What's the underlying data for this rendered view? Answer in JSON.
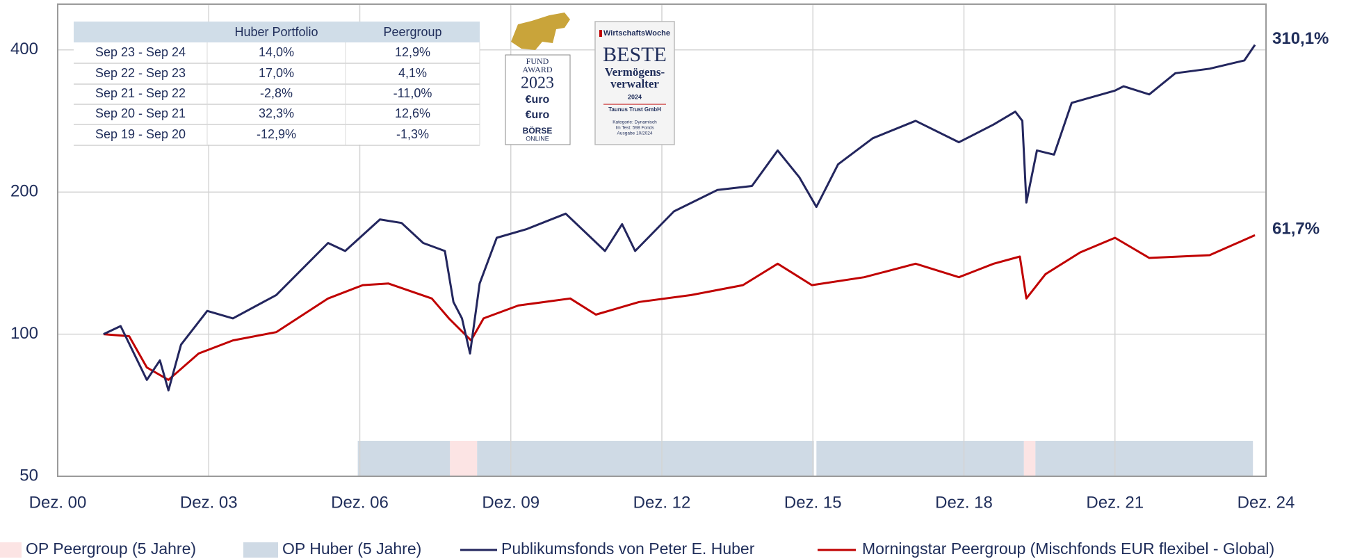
{
  "chart_data": {
    "type": "line",
    "log_scale": true,
    "grid": true,
    "xlim": [
      2000.92,
      2024.92
    ],
    "xticks": [
      {
        "value": 2000.92,
        "label": "Dez. 00"
      },
      {
        "value": 2003.92,
        "label": "Dez. 03"
      },
      {
        "value": 2006.92,
        "label": "Dez. 06"
      },
      {
        "value": 2009.92,
        "label": "Dez. 09"
      },
      {
        "value": 2012.92,
        "label": "Dez. 12"
      },
      {
        "value": 2015.92,
        "label": "Dez. 15"
      },
      {
        "value": 2018.92,
        "label": "Dez. 18"
      },
      {
        "value": 2021.92,
        "label": "Dez. 21"
      },
      {
        "value": 2024.92,
        "label": "Dez. 24"
      }
    ],
    "ylim": [
      50,
      500
    ],
    "yticks": [
      50,
      100,
      200,
      400
    ],
    "bands": [
      {
        "name": "OP Peergroup (5 Jahre)",
        "color": "#fce4e4",
        "periods": [
          [
            2008.71,
            2009.25
          ],
          [
            2020.11,
            2020.34
          ]
        ]
      },
      {
        "name": "OP Huber (5 Jahre)",
        "color": "#cfdae5",
        "periods": [
          [
            2006.88,
            2008.71
          ],
          [
            2009.25,
            2015.94
          ],
          [
            2015.99,
            2020.11
          ],
          [
            2020.34,
            2024.66
          ]
        ]
      }
    ],
    "series": [
      {
        "name": "Publikumsfonds von Peter E. Huber",
        "color": "#23265e",
        "end_label": "310,1%",
        "x": [
          2001.83,
          2002.17,
          2002.69,
          2002.95,
          2003.12,
          2003.37,
          2003.89,
          2004.4,
          2005.26,
          2006.29,
          2006.63,
          2007.32,
          2007.75,
          2008.18,
          2008.61,
          2008.78,
          2008.95,
          2009.11,
          2009.3,
          2009.64,
          2010.24,
          2011.01,
          2011.79,
          2012.13,
          2012.39,
          2013.16,
          2014.02,
          2014.71,
          2015.22,
          2015.65,
          2015.99,
          2016.42,
          2017.11,
          2017.96,
          2018.82,
          2019.51,
          2019.94,
          2020.08,
          2020.16,
          2020.37,
          2020.71,
          2021.06,
          2021.92,
          2022.09,
          2022.6,
          2023.12,
          2023.8,
          2024.49,
          2024.7
        ],
        "values": [
          100,
          104,
          80,
          88,
          76,
          95,
          112,
          108,
          121,
          156,
          150,
          175,
          172,
          156,
          150,
          117,
          108,
          91,
          128,
          160,
          167,
          180,
          150,
          171,
          150,
          182,
          202,
          206,
          245,
          215,
          186,
          229,
          260,
          283,
          255,
          278,
          296,
          283,
          190,
          245,
          240,
          309,
          328,
          335,
          322,
          357,
          365,
          380,
          410
        ]
      },
      {
        "name": "Morningstar Peergroup (Mischfonds EUR flexibel - Global)",
        "color": "#c00000",
        "end_label": "61,7%",
        "x": [
          2001.83,
          2002.34,
          2002.69,
          2003.12,
          2003.72,
          2004.4,
          2005.26,
          2006.29,
          2006.98,
          2007.49,
          2008.35,
          2008.69,
          2009.13,
          2009.38,
          2010.07,
          2011.1,
          2011.61,
          2012.47,
          2013.5,
          2014.53,
          2015.22,
          2015.9,
          2016.94,
          2017.96,
          2018.82,
          2019.51,
          2020.03,
          2020.16,
          2020.54,
          2021.23,
          2021.92,
          2022.6,
          2023.8,
          2024.7
        ],
        "values": [
          100,
          99,
          85,
          80,
          91,
          97,
          101,
          119,
          127,
          128,
          119,
          108,
          97,
          108,
          115,
          119,
          110,
          117,
          121,
          127,
          141,
          127,
          132,
          141,
          132,
          141,
          146,
          119,
          134,
          149,
          160,
          145,
          147,
          162
        ]
      }
    ]
  },
  "table": {
    "header": [
      "",
      "Huber Portfolio",
      "Peergroup"
    ],
    "rows": [
      [
        "Sep 23 - Sep 24",
        "14,0%",
        "12,9%"
      ],
      [
        "Sep 22 - Sep 23",
        "17,0%",
        "4,1%"
      ],
      [
        "Sep 21 - Sep 22",
        "-2,8%",
        "-11,0%"
      ],
      [
        "Sep 20 - Sep 21",
        "32,3%",
        "12,6%"
      ],
      [
        "Sep 19 - Sep 20",
        "-12,9%",
        "-1,3%"
      ]
    ]
  },
  "awards": {
    "fund_award": {
      "lines": [
        "FUND",
        "AWARD",
        "2023"
      ],
      "logos": [
        "€uro",
        "€uro",
        "BÖRSE",
        "ONLINE"
      ]
    },
    "wiwo": {
      "brand": "WirtschaftsWoche",
      "lines": [
        "BESTE",
        "Vermögens-",
        "verwalter"
      ],
      "year": "2024",
      "company": "Taunus Trust GmbH",
      "notes": [
        "Kategorie: Dynamisch",
        "Im Test: 598 Fonds",
        "Ausgabe 10/2024"
      ]
    }
  }
}
